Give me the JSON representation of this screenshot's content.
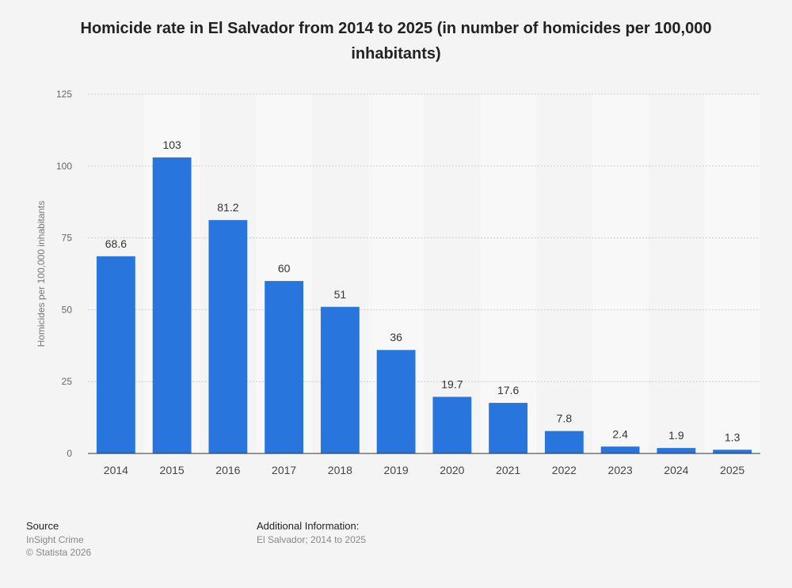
{
  "chart_data": {
    "type": "bar",
    "title": "Homicide rate in El Salvador from 2014 to 2025 (in number of homicides per 100,000 inhabitants)",
    "xlabel": "",
    "ylabel": "Homicides per 100,000 inhabitants",
    "categories": [
      "2014",
      "2015",
      "2016",
      "2017",
      "2018",
      "2019",
      "2020",
      "2021",
      "2022",
      "2023",
      "2024",
      "2025"
    ],
    "values": [
      68.6,
      103,
      81.2,
      60,
      51,
      36,
      19.7,
      17.6,
      7.8,
      2.4,
      1.9,
      1.3
    ],
    "data_labels": [
      "68.6",
      "103",
      "81.2",
      "60",
      "51",
      "36",
      "19.7",
      "17.6",
      "7.8",
      "2.4",
      "1.9",
      "1.3"
    ],
    "ylim": [
      0,
      125
    ],
    "yticks": [
      0,
      25,
      50,
      75,
      100,
      125
    ],
    "grid": true,
    "bar_color": "#2876dd"
  },
  "footer": {
    "source_heading": "Source",
    "source_lines": [
      "InSight Crime",
      "© Statista 2026"
    ],
    "info_heading": "Additional Information:",
    "info_text": "El Salvador; 2014 to 2025"
  }
}
